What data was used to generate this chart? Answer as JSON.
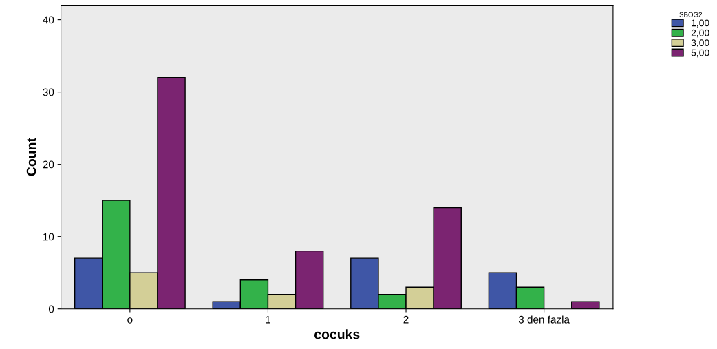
{
  "chart_data": {
    "type": "bar",
    "xlabel": "cocuks",
    "ylabel": "Count",
    "legend_title": "SBOG2",
    "categories": [
      "o",
      "1",
      "2",
      "3 den fazla"
    ],
    "series": [
      {
        "name": "1,00",
        "color": "#3f56a6",
        "values": [
          7,
          1,
          7,
          5
        ]
      },
      {
        "name": "2,00",
        "color": "#33b24a",
        "values": [
          15,
          4,
          2,
          3
        ]
      },
      {
        "name": "3,00",
        "color": "#d3cf97",
        "values": [
          5,
          2,
          3,
          null
        ]
      },
      {
        "name": "5,00",
        "color": "#7b2471",
        "values": [
          32,
          8,
          14,
          1
        ]
      }
    ],
    "ylim": [
      0,
      42
    ],
    "yticks": [
      0,
      10,
      20,
      30,
      40
    ],
    "grid": false,
    "legend": "top right"
  }
}
